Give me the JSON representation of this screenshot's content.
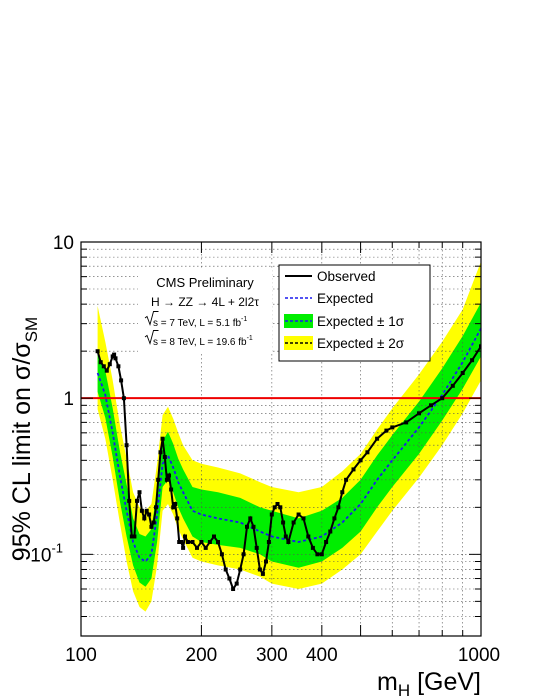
{
  "chart_data": {
    "type": "line",
    "title": "",
    "xlabel": {
      "main": "m",
      "sub": "H",
      "unit": " [GeV]"
    },
    "ylabel": {
      "main": "95% CL limit on σ/σ",
      "sub": "SM"
    },
    "xscale": "log",
    "yscale": "log",
    "xlim": [
      100,
      1000
    ],
    "ylim": [
      0.03,
      10
    ],
    "grid": true,
    "x_ticks": [
      {
        "value": 100,
        "label": "100"
      },
      {
        "value": 200,
        "label": "200"
      },
      {
        "value": 300,
        "label": "300"
      },
      {
        "value": 400,
        "label": "400"
      },
      {
        "value": 1000,
        "label": "1000"
      }
    ],
    "y_ticks": [
      {
        "value": 10,
        "label": "10"
      },
      {
        "value": 1,
        "label": "1"
      },
      {
        "value": 0.1,
        "label": "10",
        "exponent": "-1"
      }
    ],
    "reference_line": {
      "y": 1,
      "color": "#ee0000"
    },
    "annotation": {
      "line1": "CMS Preliminary",
      "line2": "H → ZZ → 4L + 2l2τ",
      "line3": {
        "sqrt": "s",
        "text": " = 7 TeV, L = 5.1 fb",
        "sup": "-1"
      },
      "line4": {
        "sqrt": "s",
        "text": " = 8 TeV, L = 19.6 fb",
        "sup": "-1"
      }
    },
    "legend": {
      "position": "top-right",
      "entries": [
        {
          "key": "observed",
          "label": "Observed"
        },
        {
          "key": "expected",
          "label": "Expected"
        },
        {
          "key": "band1",
          "label": "Expected ± 1σ"
        },
        {
          "key": "band2",
          "label": "Expected ± 2σ"
        }
      ]
    },
    "colors": {
      "observed": "#000000",
      "expected": "#1a1aee",
      "band1": "#00ee00",
      "band2": "#ffff00",
      "reference": "#ee0000"
    },
    "series": [
      {
        "name": "Observed",
        "x": [
          110,
          112,
          114,
          116,
          118,
          120,
          121,
          122,
          124,
          126,
          128,
          130,
          132,
          134,
          136,
          138,
          140,
          142,
          144,
          146,
          148,
          150,
          152,
          154,
          156,
          158,
          160,
          162,
          164,
          166,
          168,
          170,
          172,
          174,
          176,
          178,
          180,
          182,
          185,
          190,
          195,
          200,
          205,
          210,
          215,
          220,
          225,
          230,
          235,
          240,
          245,
          250,
          255,
          260,
          265,
          270,
          275,
          280,
          285,
          290,
          295,
          300,
          305,
          310,
          315,
          320,
          325,
          330,
          340,
          350,
          360,
          370,
          380,
          390,
          400,
          410,
          420,
          430,
          440,
          450,
          460,
          480,
          500,
          520,
          550,
          580,
          600,
          650,
          700,
          750,
          800,
          850,
          900,
          950,
          1000
        ],
        "y": [
          2.0,
          1.7,
          1.6,
          1.5,
          1.65,
          1.85,
          1.9,
          1.8,
          1.6,
          1.3,
          1.0,
          0.5,
          0.22,
          0.13,
          0.13,
          0.22,
          0.25,
          0.19,
          0.17,
          0.19,
          0.18,
          0.15,
          0.16,
          0.2,
          0.3,
          0.45,
          0.55,
          0.42,
          0.3,
          0.32,
          0.26,
          0.2,
          0.21,
          0.17,
          0.12,
          0.12,
          0.11,
          0.13,
          0.12,
          0.12,
          0.11,
          0.12,
          0.11,
          0.12,
          0.13,
          0.12,
          0.1,
          0.08,
          0.07,
          0.06,
          0.065,
          0.08,
          0.1,
          0.15,
          0.17,
          0.15,
          0.11,
          0.08,
          0.075,
          0.09,
          0.12,
          0.18,
          0.2,
          0.21,
          0.2,
          0.16,
          0.13,
          0.12,
          0.16,
          0.18,
          0.17,
          0.13,
          0.11,
          0.1,
          0.1,
          0.12,
          0.14,
          0.17,
          0.2,
          0.25,
          0.3,
          0.35,
          0.4,
          0.45,
          0.55,
          0.62,
          0.65,
          0.7,
          0.8,
          0.9,
          1.0,
          1.2,
          1.45,
          1.75,
          2.15
        ]
      },
      {
        "name": "Expected",
        "x": [
          110,
          115,
          120,
          125,
          130,
          135,
          140,
          145,
          150,
          155,
          160,
          165,
          170,
          175,
          180,
          190,
          200,
          220,
          250,
          280,
          300,
          350,
          400,
          450,
          500,
          550,
          600,
          700,
          800,
          900,
          1000
        ],
        "y": [
          1.45,
          1.05,
          0.6,
          0.32,
          0.19,
          0.12,
          0.095,
          0.09,
          0.1,
          0.18,
          0.38,
          0.43,
          0.36,
          0.29,
          0.25,
          0.19,
          0.18,
          0.17,
          0.16,
          0.14,
          0.13,
          0.12,
          0.13,
          0.16,
          0.21,
          0.3,
          0.4,
          0.65,
          1.05,
          1.7,
          2.8
        ]
      },
      {
        "name": "Expected ± 1σ",
        "x": [
          110,
          115,
          120,
          125,
          130,
          135,
          140,
          145,
          150,
          155,
          160,
          165,
          170,
          175,
          180,
          190,
          200,
          220,
          250,
          280,
          300,
          350,
          400,
          450,
          500,
          550,
          600,
          700,
          800,
          900,
          1000
        ],
        "low": [
          1.1,
          0.75,
          0.42,
          0.22,
          0.13,
          0.085,
          0.066,
          0.062,
          0.07,
          0.12,
          0.27,
          0.3,
          0.25,
          0.2,
          0.17,
          0.13,
          0.12,
          0.115,
          0.11,
          0.1,
          0.09,
          0.082,
          0.09,
          0.11,
          0.14,
          0.2,
          0.27,
          0.44,
          0.72,
          1.15,
          1.85
        ],
        "high": [
          2.0,
          1.5,
          0.86,
          0.46,
          0.28,
          0.17,
          0.135,
          0.13,
          0.145,
          0.26,
          0.53,
          0.61,
          0.51,
          0.41,
          0.35,
          0.27,
          0.26,
          0.25,
          0.23,
          0.2,
          0.19,
          0.17,
          0.19,
          0.23,
          0.3,
          0.43,
          0.58,
          0.95,
          1.55,
          2.5,
          4.1
        ]
      },
      {
        "name": "Expected ± 2σ",
        "x": [
          110,
          115,
          120,
          125,
          130,
          135,
          140,
          145,
          150,
          155,
          160,
          165,
          170,
          175,
          180,
          190,
          200,
          220,
          250,
          280,
          300,
          350,
          400,
          450,
          500,
          550,
          600,
          700,
          800,
          900,
          1000
        ],
        "low": [
          0.85,
          0.55,
          0.3,
          0.16,
          0.09,
          0.058,
          0.046,
          0.043,
          0.05,
          0.085,
          0.19,
          0.21,
          0.18,
          0.145,
          0.125,
          0.095,
          0.09,
          0.085,
          0.08,
          0.072,
          0.065,
          0.06,
          0.065,
          0.08,
          0.1,
          0.14,
          0.19,
          0.31,
          0.5,
          0.8,
          1.3
        ],
        "high": [
          3.9,
          2.3,
          1.3,
          0.68,
          0.41,
          0.25,
          0.2,
          0.19,
          0.21,
          0.38,
          0.78,
          0.88,
          0.74,
          0.6,
          0.5,
          0.4,
          0.38,
          0.36,
          0.33,
          0.29,
          0.27,
          0.25,
          0.27,
          0.34,
          0.44,
          0.63,
          0.86,
          1.42,
          2.3,
          3.7,
          7.5
        ]
      }
    ]
  }
}
